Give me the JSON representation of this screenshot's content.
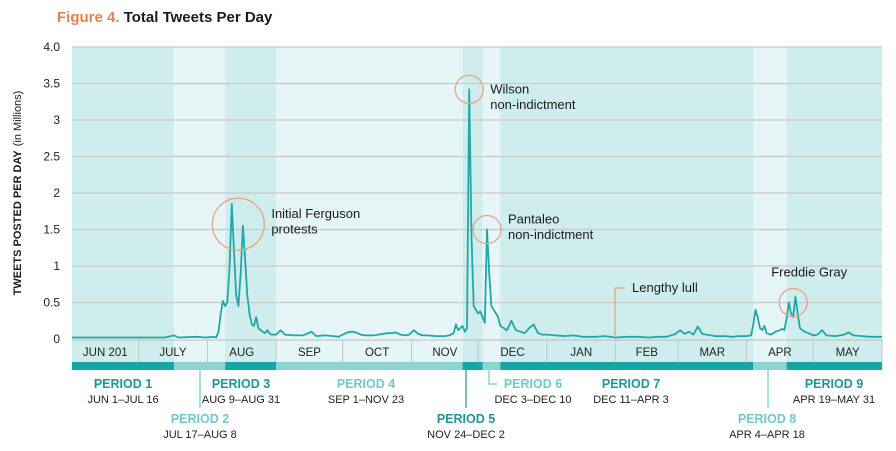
{
  "title": {
    "figure": "Figure 4.",
    "text": "Total Tweets Per Day"
  },
  "colors": {
    "accent": "#e8804a",
    "line": "#1fa8a8",
    "band_dark": "#d0eded",
    "band_light": "#e6f6f6",
    "bar_dark": "#17a6a6",
    "bar_light": "#8fd4d4",
    "label_dark": "#1b9898",
    "label_light": "#6fcaca",
    "grid": "#c9c9c9",
    "circle": "#e8a285"
  },
  "chart_data": {
    "type": "line",
    "title": "Total Tweets Per Day",
    "ylabel_bold": "TWEETS POSTED PER DAY",
    "ylabel_light": "(in Millions)",
    "ylim": [
      0,
      4.0
    ],
    "yticks": [
      {
        "value": 0,
        "label": "0"
      },
      {
        "value": 0.5,
        "label": "0.5"
      },
      {
        "value": 1,
        "label": "1"
      },
      {
        "value": 1.5,
        "label": "1.5"
      },
      {
        "value": 2,
        "label": "2"
      },
      {
        "value": 2.5,
        "label": "2.5"
      },
      {
        "value": 3,
        "label": "3"
      },
      {
        "value": 3.5,
        "label": "3.5"
      },
      {
        "value": 4.0,
        "label": "4.0"
      }
    ],
    "grid": true,
    "xlim": [
      0,
      365
    ],
    "months": [
      {
        "label": "JUN 201",
        "start": 0,
        "end": 30
      },
      {
        "label": "JULY",
        "start": 30,
        "end": 61
      },
      {
        "label": "AUG",
        "start": 61,
        "end": 92
      },
      {
        "label": "SEP",
        "start": 92,
        "end": 122
      },
      {
        "label": "OCT",
        "start": 122,
        "end": 153
      },
      {
        "label": "NOV",
        "start": 153,
        "end": 183
      },
      {
        "label": "DEC",
        "start": 183,
        "end": 214
      },
      {
        "label": "JAN",
        "start": 214,
        "end": 245
      },
      {
        "label": "FEB",
        "start": 245,
        "end": 273
      },
      {
        "label": "MAR",
        "start": 273,
        "end": 304
      },
      {
        "label": "APR",
        "start": 304,
        "end": 334
      },
      {
        "label": "MAY",
        "start": 334,
        "end": 365
      }
    ],
    "periods": [
      {
        "name": "PERIOD 1",
        "range": "JUN 1–JUL 16",
        "start": 0,
        "end": 46,
        "shade": "dark",
        "row": 1
      },
      {
        "name": "PERIOD 2",
        "range": "JUL 17–AUG 8",
        "start": 46,
        "end": 69,
        "shade": "light",
        "row": 2
      },
      {
        "name": "PERIOD 3",
        "range": "AUG 9–AUG 31",
        "start": 69,
        "end": 92,
        "shade": "dark",
        "row": 1
      },
      {
        "name": "PERIOD 4",
        "range": "SEP 1–NOV 23",
        "start": 92,
        "end": 176,
        "shade": "light",
        "row": 1
      },
      {
        "name": "PERIOD 5",
        "range": "NOV 24–DEC 2",
        "start": 176,
        "end": 185,
        "shade": "dark",
        "row": 2
      },
      {
        "name": "PERIOD 6",
        "range": "DEC 3–DEC 10",
        "start": 185,
        "end": 193,
        "shade": "light",
        "row": 1
      },
      {
        "name": "PERIOD 7",
        "range": "DEC 11–APR 3",
        "start": 193,
        "end": 307,
        "shade": "dark",
        "row": 1
      },
      {
        "name": "PERIOD 8",
        "range": "APR 4–APR 18",
        "start": 307,
        "end": 322,
        "shade": "light",
        "row": 2
      },
      {
        "name": "PERIOD 9",
        "range": "APR 19–MAY 31",
        "start": 322,
        "end": 365,
        "shade": "dark",
        "row": 1
      }
    ],
    "series": [
      {
        "name": "Tweets per day (millions)",
        "points": [
          [
            0,
            0.02
          ],
          [
            10,
            0.02
          ],
          [
            20,
            0.02
          ],
          [
            30,
            0.02
          ],
          [
            42,
            0.02
          ],
          [
            46,
            0.05
          ],
          [
            48,
            0.02
          ],
          [
            56,
            0.03
          ],
          [
            60,
            0.02
          ],
          [
            64,
            0.03
          ],
          [
            65,
            0.02
          ],
          [
            66,
            0.1
          ],
          [
            67,
            0.35
          ],
          [
            68,
            0.52
          ],
          [
            69,
            0.45
          ],
          [
            70,
            0.5
          ],
          [
            71,
            1.0
          ],
          [
            72,
            1.85
          ],
          [
            73,
            1.2
          ],
          [
            74,
            0.6
          ],
          [
            75,
            0.45
          ],
          [
            76,
            0.9
          ],
          [
            77,
            1.55
          ],
          [
            78,
            1.1
          ],
          [
            79,
            0.6
          ],
          [
            80,
            0.35
          ],
          [
            81,
            0.2
          ],
          [
            82,
            0.18
          ],
          [
            83,
            0.3
          ],
          [
            84,
            0.15
          ],
          [
            85,
            0.12
          ],
          [
            86,
            0.1
          ],
          [
            87,
            0.08
          ],
          [
            88,
            0.12
          ],
          [
            89,
            0.08
          ],
          [
            90,
            0.06
          ],
          [
            92,
            0.06
          ],
          [
            94,
            0.12
          ],
          [
            96,
            0.06
          ],
          [
            100,
            0.05
          ],
          [
            104,
            0.05
          ],
          [
            108,
            0.1
          ],
          [
            110,
            0.04
          ],
          [
            114,
            0.05
          ],
          [
            118,
            0.04
          ],
          [
            120,
            0.03
          ],
          [
            124,
            0.09
          ],
          [
            126,
            0.1
          ],
          [
            128,
            0.09
          ],
          [
            130,
            0.06
          ],
          [
            132,
            0.05
          ],
          [
            136,
            0.05
          ],
          [
            140,
            0.07
          ],
          [
            142,
            0.08
          ],
          [
            144,
            0.08
          ],
          [
            146,
            0.09
          ],
          [
            148,
            0.06
          ],
          [
            150,
            0.05
          ],
          [
            152,
            0.06
          ],
          [
            154,
            0.12
          ],
          [
            156,
            0.07
          ],
          [
            158,
            0.05
          ],
          [
            160,
            0.05
          ],
          [
            164,
            0.04
          ],
          [
            168,
            0.04
          ],
          [
            170,
            0.05
          ],
          [
            172,
            0.08
          ],
          [
            173,
            0.2
          ],
          [
            174,
            0.12
          ],
          [
            175,
            0.15
          ],
          [
            176,
            0.18
          ],
          [
            177,
            0.1
          ],
          [
            178,
            0.15
          ],
          [
            179,
            3.42
          ],
          [
            180,
            1.4
          ],
          [
            181,
            0.45
          ],
          [
            182,
            0.4
          ],
          [
            183,
            0.35
          ],
          [
            184,
            0.38
          ],
          [
            185,
            0.3
          ],
          [
            186,
            0.22
          ],
          [
            187,
            1.5
          ],
          [
            188,
            0.9
          ],
          [
            189,
            0.45
          ],
          [
            190,
            0.4
          ],
          [
            191,
            0.35
          ],
          [
            192,
            0.3
          ],
          [
            193,
            0.18
          ],
          [
            194,
            0.16
          ],
          [
            196,
            0.12
          ],
          [
            198,
            0.25
          ],
          [
            200,
            0.12
          ],
          [
            202,
            0.1
          ],
          [
            204,
            0.08
          ],
          [
            206,
            0.15
          ],
          [
            208,
            0.2
          ],
          [
            210,
            0.08
          ],
          [
            212,
            0.06
          ],
          [
            214,
            0.06
          ],
          [
            218,
            0.05
          ],
          [
            222,
            0.04
          ],
          [
            226,
            0.05
          ],
          [
            230,
            0.03
          ],
          [
            236,
            0.03
          ],
          [
            240,
            0.04
          ],
          [
            245,
            0.02
          ],
          [
            250,
            0.03
          ],
          [
            255,
            0.03
          ],
          [
            260,
            0.02
          ],
          [
            264,
            0.03
          ],
          [
            268,
            0.03
          ],
          [
            272,
            0.07
          ],
          [
            274,
            0.12
          ],
          [
            276,
            0.07
          ],
          [
            278,
            0.1
          ],
          [
            280,
            0.06
          ],
          [
            282,
            0.17
          ],
          [
            284,
            0.07
          ],
          [
            286,
            0.06
          ],
          [
            290,
            0.04
          ],
          [
            294,
            0.04
          ],
          [
            298,
            0.03
          ],
          [
            300,
            0.04
          ],
          [
            304,
            0.04
          ],
          [
            306,
            0.05
          ],
          [
            307,
            0.2
          ],
          [
            308,
            0.4
          ],
          [
            309,
            0.3
          ],
          [
            310,
            0.15
          ],
          [
            311,
            0.12
          ],
          [
            312,
            0.18
          ],
          [
            313,
            0.08
          ],
          [
            315,
            0.06
          ],
          [
            317,
            0.1
          ],
          [
            319,
            0.12
          ],
          [
            320,
            0.14
          ],
          [
            321,
            0.12
          ],
          [
            322,
            0.28
          ],
          [
            323,
            0.5
          ],
          [
            324,
            0.35
          ],
          [
            325,
            0.3
          ],
          [
            326,
            0.58
          ],
          [
            327,
            0.35
          ],
          [
            328,
            0.15
          ],
          [
            330,
            0.1
          ],
          [
            332,
            0.08
          ],
          [
            334,
            0.05
          ],
          [
            336,
            0.06
          ],
          [
            338,
            0.12
          ],
          [
            340,
            0.05
          ],
          [
            344,
            0.04
          ],
          [
            348,
            0.06
          ],
          [
            350,
            0.09
          ],
          [
            352,
            0.05
          ],
          [
            356,
            0.04
          ],
          [
            360,
            0.03
          ],
          [
            365,
            0.03
          ]
        ]
      }
    ],
    "annotations": [
      {
        "lines": [
          "Initial Ferguson",
          "protests"
        ],
        "x": 74.5,
        "y": 1.6,
        "circle": "large"
      },
      {
        "lines": [
          "Wilson",
          "non-indictment"
        ],
        "x": 179,
        "y": 3.42,
        "circle": "small"
      },
      {
        "lines": [
          "Pantaleo",
          "non-indictment"
        ],
        "x": 187,
        "y": 1.5,
        "circle": "small"
      },
      {
        "lines": [
          "Lengthy lull"
        ],
        "x": 250,
        "y": 0.0,
        "circle": "none"
      },
      {
        "lines": [
          "Freddie Gray"
        ],
        "x": 325,
        "y": 0.5,
        "circle": "small"
      }
    ]
  }
}
